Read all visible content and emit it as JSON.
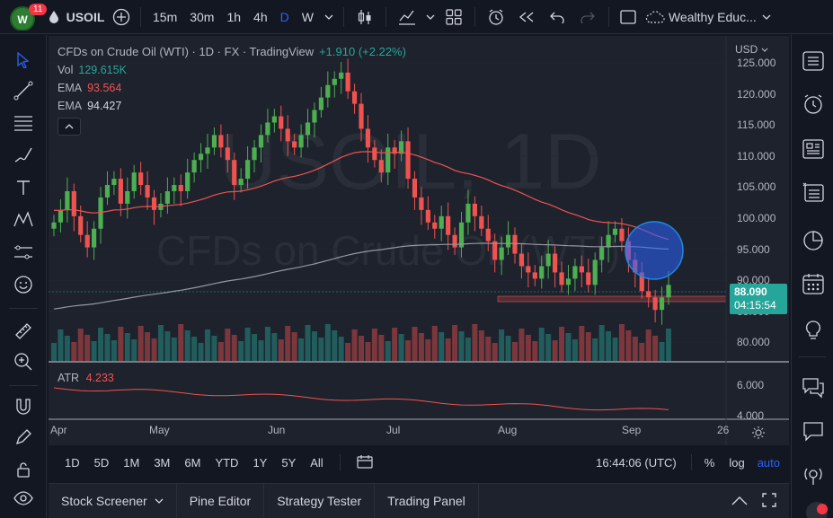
{
  "topbar": {
    "notif_count": "11",
    "symbol": "USOIL",
    "intervals": [
      "15m",
      "30m",
      "1h",
      "4h",
      "D",
      "W"
    ],
    "active_interval": "D",
    "layout_name": "Wealthy Educ..."
  },
  "legend": {
    "title": "CFDs on Crude Oil (WTI) · 1D · FX · TradingView",
    "change": "+1.910 (+2.22%)",
    "vol_label": "Vol",
    "vol_value": "129.615K",
    "ema1_label": "EMA",
    "ema1_value": "93.564",
    "ema2_label": "EMA",
    "ema2_value": "94.427"
  },
  "watermark": {
    "symbol": "USOIL, 1D",
    "name": "CFDs on Crude Oil (WTI)"
  },
  "y_axis": {
    "currency": "USD",
    "ticks": [
      "125.000",
      "120.000",
      "115.000",
      "110.000",
      "105.000",
      "100.000",
      "95.000",
      "90.000",
      "85.000",
      "80.000"
    ],
    "current_price": "88.090",
    "countdown": "04:15:54"
  },
  "atr": {
    "label": "ATR",
    "value": "4.233",
    "ticks": [
      "6.000",
      "4.000"
    ]
  },
  "x_axis": {
    "labels": [
      "Apr",
      "May",
      "Jun",
      "Jul",
      "Aug",
      "Sep",
      "26"
    ]
  },
  "range_bar": {
    "ranges": [
      "1D",
      "5D",
      "1M",
      "3M",
      "6M",
      "YTD",
      "1Y",
      "5Y",
      "All"
    ],
    "time": "16:44:06 (UTC)",
    "percent": "%",
    "log": "log",
    "auto": "auto"
  },
  "bottom_panel": {
    "tabs": [
      "Stock Screener",
      "Pine Editor",
      "Strategy Tester",
      "Trading Panel"
    ]
  },
  "colors": {
    "up": "#26a69a",
    "up_candle": "#4caf50",
    "down": "#ef5350",
    "accent": "#2962ff",
    "ema_fast": "#ef5350",
    "ema_slow": "#9598a1"
  },
  "chart_data": {
    "type": "candlestick",
    "title": "CFDs on Crude Oil (WTI) · 1D · FX",
    "ylim": [
      78,
      126
    ],
    "x_labels": [
      "Apr",
      "May",
      "Jun",
      "Jul",
      "Aug",
      "Sep"
    ],
    "close_series": [
      98,
      100,
      103,
      99,
      96,
      94,
      97,
      102,
      104,
      105,
      101,
      103,
      106,
      104,
      102,
      100,
      101,
      103,
      104,
      103,
      106,
      108,
      109,
      110,
      112,
      110,
      108,
      104,
      105,
      108,
      110,
      112,
      114,
      115,
      113,
      111,
      110,
      112,
      114,
      116,
      118,
      120,
      121,
      122,
      119,
      117,
      113,
      110,
      108,
      106,
      110,
      109,
      111,
      105,
      102,
      100,
      98,
      97,
      99,
      96,
      94,
      98,
      101,
      99,
      97,
      95,
      92,
      94,
      96,
      93,
      91,
      90,
      89,
      91,
      93,
      90,
      88,
      89,
      91,
      90,
      88,
      92,
      94,
      96,
      97,
      95,
      92,
      90,
      87,
      86,
      84,
      86,
      88
    ],
    "ema_fast_end": 93.564,
    "ema_slow_end": 94.427,
    "support_zone": [
      87,
      88
    ]
  }
}
